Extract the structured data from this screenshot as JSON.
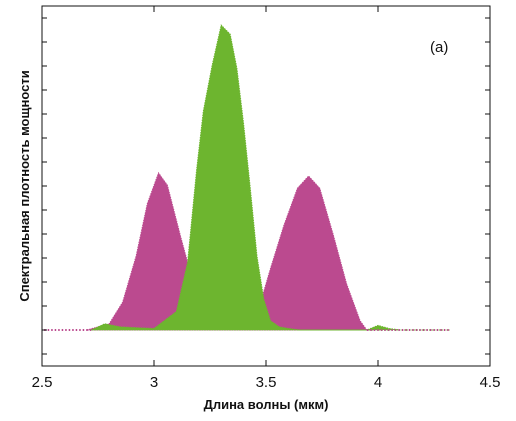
{
  "chart_data": {
    "type": "area",
    "title": "",
    "panel_label": "(a)",
    "xlabel": "Длина волны (мкм)",
    "ylabel": "Спектральная плотность мощности",
    "xlim": [
      2.5,
      4.5
    ],
    "ylim": [
      0,
      1.0
    ],
    "xticks": [
      2.5,
      3,
      3.5,
      4,
      4.5
    ],
    "xtick_labels": [
      "2.5",
      "3",
      "3.5",
      "4",
      "4.5"
    ],
    "grid": false,
    "legend": "none",
    "series": [
      {
        "color": "#bb4a8f",
        "x": [
          2.7,
          2.8,
          2.86,
          2.92,
          2.97,
          3.02,
          3.06,
          3.12,
          3.18,
          3.22,
          3.26,
          3.3,
          3.35,
          3.4,
          3.44,
          3.48,
          3.52,
          3.58,
          3.64,
          3.69,
          3.74,
          3.8,
          3.86,
          3.92,
          3.95,
          3.98
        ],
        "y": [
          0.0,
          0.02,
          0.09,
          0.24,
          0.41,
          0.51,
          0.47,
          0.3,
          0.14,
          0.06,
          0.01,
          0.01,
          0.01,
          0.015,
          0.04,
          0.1,
          0.2,
          0.34,
          0.46,
          0.5,
          0.46,
          0.31,
          0.15,
          0.03,
          0.0,
          0.0
        ]
      },
      {
        "color": "#6db52f",
        "x": [
          2.72,
          2.78,
          2.85,
          3.0,
          3.1,
          3.15,
          3.19,
          3.22,
          3.26,
          3.3,
          3.34,
          3.37,
          3.4,
          3.43,
          3.46,
          3.49,
          3.52,
          3.56,
          3.6,
          3.65,
          3.95,
          4.0,
          4.05,
          4.1,
          4.2,
          4.32
        ],
        "y": [
          0.0,
          0.02,
          0.01,
          0.005,
          0.06,
          0.22,
          0.52,
          0.71,
          0.86,
          0.99,
          0.96,
          0.85,
          0.67,
          0.46,
          0.24,
          0.1,
          0.03,
          0.01,
          0.005,
          0.0,
          0.0,
          0.015,
          0.005,
          0.0,
          0.0,
          0.0
        ]
      }
    ]
  }
}
